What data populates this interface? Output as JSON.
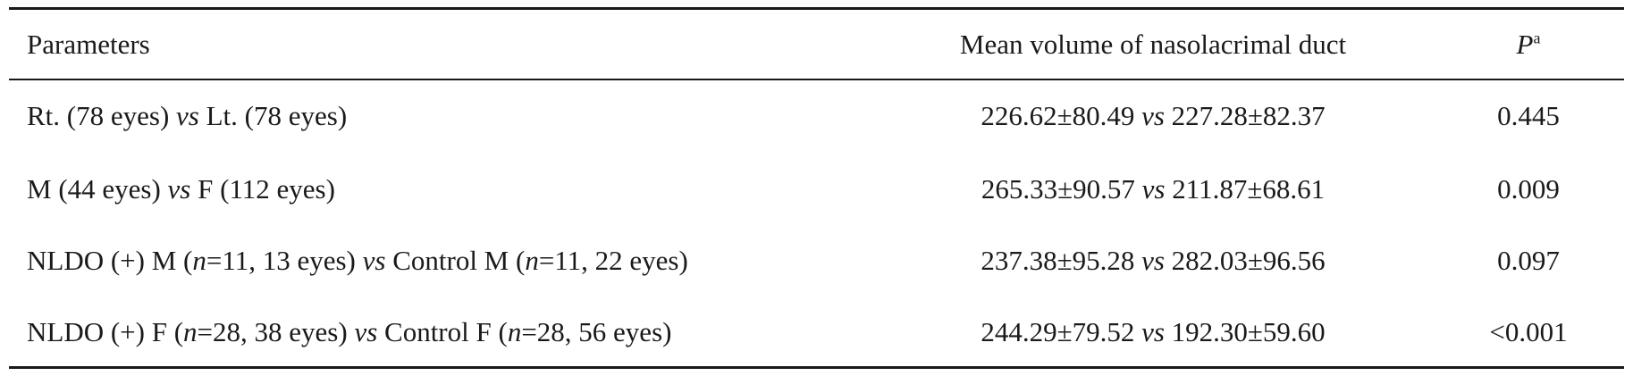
{
  "table": {
    "headers": {
      "parameters": "Parameters",
      "mean_volume": "Mean volume of nasolacrimal duct",
      "p": "P",
      "p_superscript": "a"
    },
    "rows": [
      {
        "param": [
          {
            "t": "Rt. (78 eyes) "
          },
          {
            "t": "vs",
            "i": true
          },
          {
            "t": " Lt. (78 eyes)"
          }
        ],
        "mean": [
          {
            "t": "226.62±80.49 "
          },
          {
            "t": "vs",
            "i": true
          },
          {
            "t": " 227.28±82.37"
          }
        ],
        "p": "0.445"
      },
      {
        "param": [
          {
            "t": "M (44 eyes) "
          },
          {
            "t": "vs",
            "i": true
          },
          {
            "t": " F (112 eyes)"
          }
        ],
        "mean": [
          {
            "t": "265.33±90.57 "
          },
          {
            "t": "vs",
            "i": true
          },
          {
            "t": " 211.87±68.61"
          }
        ],
        "p": "0.009"
      },
      {
        "param": [
          {
            "t": "NLDO (+) M ("
          },
          {
            "t": "n",
            "i": true
          },
          {
            "t": "=11, 13 eyes) "
          },
          {
            "t": "vs",
            "i": true
          },
          {
            "t": " Control M ("
          },
          {
            "t": "n",
            "i": true
          },
          {
            "t": "=11, 22 eyes)"
          }
        ],
        "mean": [
          {
            "t": "237.38±95.28 "
          },
          {
            "t": "vs",
            "i": true
          },
          {
            "t": " 282.03±96.56"
          }
        ],
        "p": "0.097"
      },
      {
        "param": [
          {
            "t": "NLDO (+) F ("
          },
          {
            "t": "n",
            "i": true
          },
          {
            "t": "=28, 38 eyes) "
          },
          {
            "t": "vs",
            "i": true
          },
          {
            "t": " Control F ("
          },
          {
            "t": "n",
            "i": true
          },
          {
            "t": "=28, 56 eyes)"
          }
        ],
        "mean": [
          {
            "t": "244.29±79.52 "
          },
          {
            "t": "vs",
            "i": true
          },
          {
            "t": " 192.30±59.60"
          }
        ],
        "p": "<0.001"
      }
    ]
  }
}
